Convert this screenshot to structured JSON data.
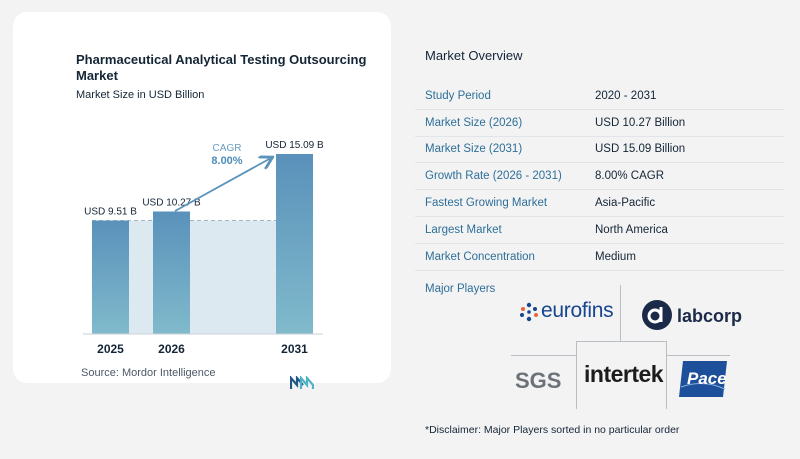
{
  "chart": {
    "title": "Pharmaceutical Analytical Testing Outsourcing Market",
    "subtitle": "Market Size in USD Billion",
    "cagr_label": "CAGR",
    "cagr_value": "8.00%",
    "source": "Source:  Mordor Intelligence"
  },
  "chart_data": {
    "type": "bar",
    "title": "Pharmaceutical Analytical Testing Outsourcing Market",
    "subtitle": "Market Size in USD Billion",
    "categories": [
      "2025",
      "2026",
      "2031"
    ],
    "values": [
      9.51,
      10.27,
      15.09
    ],
    "data_labels": [
      "USD 9.51 B",
      "USD 10.27 B",
      "USD 15.09 B"
    ],
    "ylabel": "",
    "xlabel": "",
    "ylim": [
      0,
      15.09
    ],
    "annotation": {
      "text": "CAGR",
      "value": "8.00%"
    },
    "colors": {
      "bar_top": "#5c94bd",
      "bar_bottom": "#7fb8cc",
      "band": "#dde9f1",
      "arrow": "#5b93bb"
    },
    "grid": false
  },
  "overview": {
    "title": "Market Overview",
    "rows": [
      {
        "label": "Study Period",
        "value": "2020 - 2031"
      },
      {
        "label": "Market Size (2026)",
        "value": "USD 10.27 Billion"
      },
      {
        "label": "Market Size (2031)",
        "value": "USD 15.09 Billion"
      },
      {
        "label": "Growth Rate (2026 - 2031)",
        "value": "8.00% CAGR"
      },
      {
        "label": "Fastest Growing Market",
        "value": "Asia-Pacific"
      },
      {
        "label": "Largest Market",
        "value": "North America"
      },
      {
        "label": "Market Concentration",
        "value": "Medium"
      }
    ],
    "major_players_label": "Major Players",
    "players": {
      "eurofins": "eurofins",
      "labcorp": "labcorp",
      "sgs": "SGS",
      "intertek": "intertek",
      "pace": "Pace"
    },
    "disclaimer": "*Disclaimer: Major Players sorted in no particular order"
  },
  "colors": {
    "label_blue": "#2e6f97",
    "dark_text": "#142536"
  }
}
